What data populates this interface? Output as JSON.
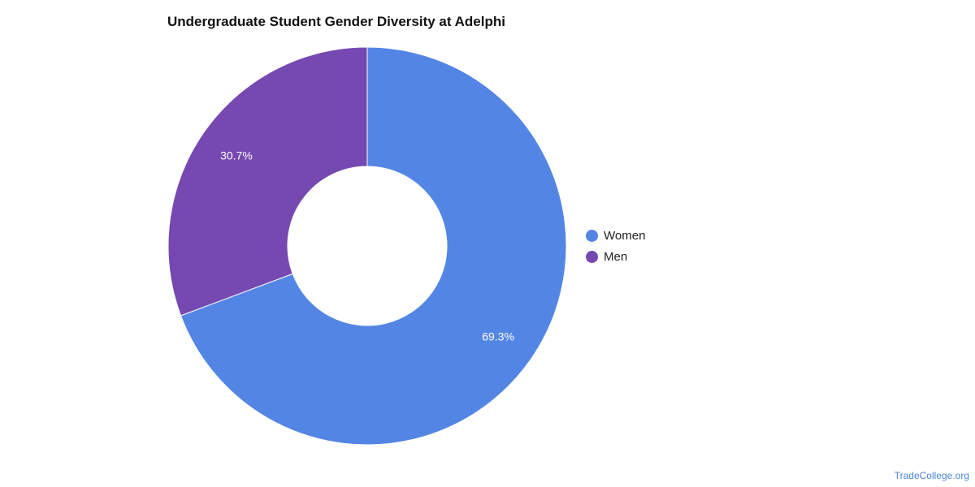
{
  "chart_data": {
    "type": "pie",
    "variant": "donut",
    "title": "Undergraduate Student Gender Diversity at Adelphi",
    "slices": [
      {
        "label": "Women",
        "value": 69.3,
        "value_label": "69.3%",
        "color": "#5386e4"
      },
      {
        "label": "Men",
        "value": 30.7,
        "value_label": "30.7%",
        "color": "#7549b1"
      }
    ],
    "legend_position": "right"
  },
  "footer": {
    "source": "TradeCollege.org"
  }
}
